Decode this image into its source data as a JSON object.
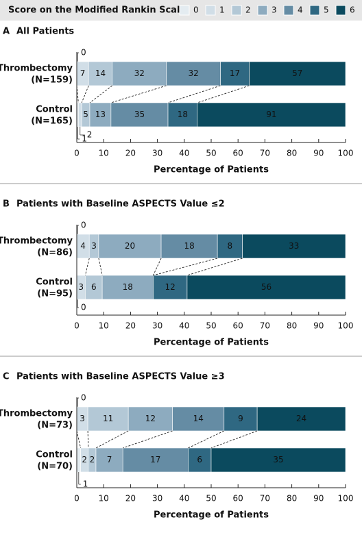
{
  "legend": {
    "title": "Score on the Modified Rankin Scale:",
    "entries": [
      {
        "name": "0",
        "color": "#e4ecf1"
      },
      {
        "name": "1",
        "color": "#d1dee7"
      },
      {
        "name": "2",
        "color": "#b3c8d6"
      },
      {
        "name": "3",
        "color": "#8dabbf"
      },
      {
        "name": "4",
        "color": "#658ca4"
      },
      {
        "name": "5",
        "color": "#2f6882"
      },
      {
        "name": "6",
        "color": "#0b4a5e"
      }
    ]
  },
  "chart_data": [
    {
      "type": "bar",
      "panel": "A",
      "title": "All Patients",
      "categories": [
        "Thrombectomy",
        "Control"
      ],
      "group_sizes": [
        {
          "value": 159,
          "label": "(N=159)"
        },
        {
          "value": 165,
          "label": "(N=165)"
        }
      ],
      "series": [
        {
          "values": [
            0,
            1
          ]
        },
        {
          "values": [
            7,
            2
          ]
        },
        {
          "values": [
            14,
            5
          ]
        },
        {
          "values": [
            32,
            13
          ]
        },
        {
          "values": [
            32,
            35
          ]
        },
        {
          "values": [
            17,
            18
          ]
        },
        {
          "values": [
            57,
            91
          ]
        }
      ],
      "xlabel": "Percentage of Patients",
      "xlim": [
        0,
        100
      ],
      "xticks": [
        0,
        10,
        20,
        30,
        40,
        50,
        60,
        70,
        80,
        90,
        100
      ]
    },
    {
      "type": "bar",
      "panel": "B",
      "title": "Patients with Baseline ASPECTS Value ≤2",
      "categories": [
        "Thrombectomy",
        "Control"
      ],
      "group_sizes": [
        {
          "value": 86,
          "label": "(N=86)"
        },
        {
          "value": 95,
          "label": "(N=95)"
        }
      ],
      "series": [
        {
          "values": [
            0,
            0
          ]
        },
        {
          "values": [
            4,
            3
          ]
        },
        {
          "values": [
            3,
            6
          ]
        },
        {
          "values": [
            20,
            18
          ]
        },
        {
          "values": [
            18,
            0
          ]
        },
        {
          "values": [
            8,
            12
          ]
        },
        {
          "values": [
            33,
            56
          ]
        }
      ],
      "xlabel": "Percentage of Patients",
      "xlim": [
        0,
        100
      ],
      "xticks": [
        0,
        10,
        20,
        30,
        40,
        50,
        60,
        70,
        80,
        90,
        100
      ]
    },
    {
      "type": "bar",
      "panel": "C",
      "title": "Patients with Baseline ASPECTS Value ≥3",
      "categories": [
        "Thrombectomy",
        "Control"
      ],
      "group_sizes": [
        {
          "value": 73,
          "label": "(N=73)"
        },
        {
          "value": 70,
          "label": "(N=70)"
        }
      ],
      "series": [
        {
          "values": [
            0,
            1
          ]
        },
        {
          "values": [
            3,
            2
          ]
        },
        {
          "values": [
            11,
            2
          ]
        },
        {
          "values": [
            12,
            7
          ]
        },
        {
          "values": [
            14,
            17
          ]
        },
        {
          "values": [
            9,
            6
          ]
        },
        {
          "values": [
            24,
            35
          ]
        }
      ],
      "xlabel": "Percentage of Patients",
      "xlim": [
        0,
        100
      ],
      "xticks": [
        0,
        10,
        20,
        30,
        40,
        50,
        60,
        70,
        80,
        90,
        100
      ]
    }
  ]
}
